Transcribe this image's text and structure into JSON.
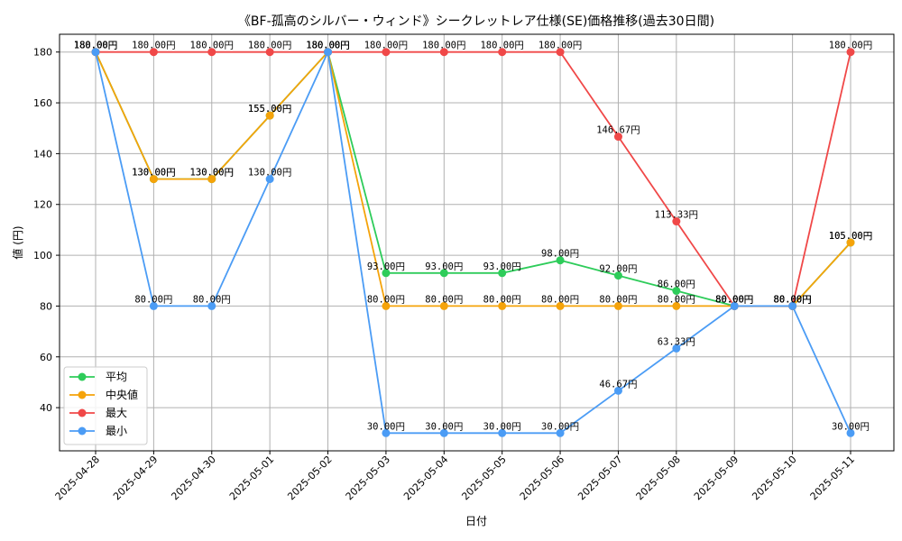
{
  "chart_data": {
    "type": "line",
    "title": "《BF-孤高のシルバー・ウィンド》シークレットレア仕様(SE)価格推移(過去30日間)",
    "xlabel": "日付",
    "ylabel": "値 (円)",
    "x": [
      "2025-04-28",
      "2025-04-29",
      "2025-04-30",
      "2025-05-01",
      "2025-05-02",
      "2025-05-03",
      "2025-05-04",
      "2025-05-05",
      "2025-05-06",
      "2025-05-07",
      "2025-05-08",
      "2025-05-09",
      "2025-05-10",
      "2025-05-11"
    ],
    "ylim": [
      23,
      187
    ],
    "yticks": [
      40,
      60,
      80,
      100,
      120,
      140,
      160,
      180
    ],
    "grid": true,
    "legend_position": "lower-left",
    "series": [
      {
        "name": "平均",
        "color": "#2ecc5a",
        "values": [
          180,
          130,
          130,
          155,
          180,
          93,
          93,
          93,
          98,
          92,
          86,
          80,
          80,
          105
        ],
        "labels": [
          "180.00円",
          "130.00円",
          "130.00円",
          "155.00円",
          "180.00円",
          "93.00円",
          "93.00円",
          "93.00円",
          "98.00円",
          "92.00円",
          "86.00円",
          "80.00円",
          "80.00円",
          "105.00円"
        ]
      },
      {
        "name": "中央値",
        "color": "#f5a30a",
        "values": [
          180,
          130,
          130,
          155,
          180,
          80,
          80,
          80,
          80,
          80,
          80,
          80,
          80,
          105
        ],
        "labels": [
          "180.00円",
          "130.00円",
          "130.00円",
          "155.00円",
          "180.00円",
          "80.00円",
          "80.00円",
          "80.00円",
          "80.00円",
          "80.00円",
          "80.00円",
          "80.00円",
          "80.00円",
          "105.00円"
        ]
      },
      {
        "name": "最大",
        "color": "#f04848",
        "values": [
          180,
          180,
          180,
          180,
          180,
          180,
          180,
          180,
          180,
          146.67,
          113.33,
          80,
          80,
          180
        ],
        "labels": [
          "180.00円",
          "180.00円",
          "180.00円",
          "180.00円",
          "180.00円",
          "180.00円",
          "180.00円",
          "180.00円",
          "180.00円",
          "146.67円",
          "113.33円",
          "80.00円",
          "80.00円",
          "180.00円"
        ]
      },
      {
        "name": "最小",
        "color": "#4b9cf5",
        "values": [
          180,
          80,
          80,
          130,
          180,
          30,
          30,
          30,
          30,
          46.67,
          63.33,
          80,
          80,
          30
        ],
        "labels": [
          "180.00円",
          "80.00円",
          "80.00円",
          "130.00円",
          "180.00円",
          "30.00円",
          "30.00円",
          "30.00円",
          "30.00円",
          "46.67円",
          "63.33円",
          "80.00円",
          "80.00円",
          "30.00円"
        ]
      }
    ]
  }
}
